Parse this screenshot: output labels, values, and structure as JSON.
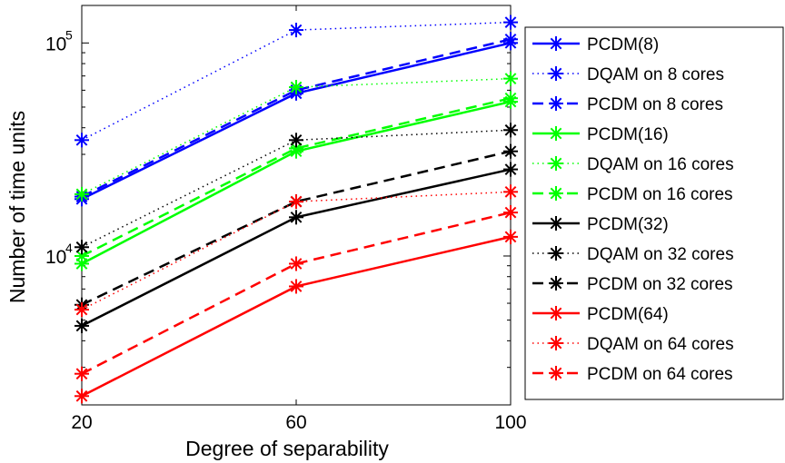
{
  "chart_data": {
    "type": "line",
    "xlabel": "Degree of separability",
    "ylabel": "Number of time units",
    "x": [
      20,
      60,
      100
    ],
    "xlim": [
      20,
      100
    ],
    "ylim": [
      2000,
      150000
    ],
    "yscale": "log",
    "grid": false,
    "legend_position": "outside-right",
    "x_ticks": [
      "20",
      "60",
      "100"
    ],
    "y_ticks": [
      {
        "base": "10",
        "exp": "4",
        "value": 10000
      },
      {
        "base": "10",
        "exp": "5",
        "value": 100000
      }
    ],
    "series": [
      {
        "name": "PCDM(8)",
        "color": "#0000ff",
        "style": "solid",
        "values": [
          18500,
          58000,
          100000
        ]
      },
      {
        "name": "DQAM on 8 cores",
        "color": "#0000ff",
        "style": "dotted",
        "values": [
          35000,
          115000,
          125000
        ]
      },
      {
        "name": "PCDM on 8 cores",
        "color": "#0000ff",
        "style": "dashed",
        "values": [
          19000,
          60000,
          104000
        ]
      },
      {
        "name": "PCDM(16)",
        "color": "#00ff00",
        "style": "solid",
        "values": [
          9200,
          31000,
          53000
        ]
      },
      {
        "name": "DQAM on 16 cores",
        "color": "#00ff00",
        "style": "dotted",
        "values": [
          19500,
          62000,
          68000
        ]
      },
      {
        "name": "PCDM on 16 cores",
        "color": "#00ff00",
        "style": "dashed",
        "values": [
          10000,
          32000,
          55000
        ]
      },
      {
        "name": "PCDM(32)",
        "color": "#000000",
        "style": "solid",
        "values": [
          4700,
          15200,
          25500
        ]
      },
      {
        "name": "DQAM on 32 cores",
        "color": "#000000",
        "style": "dotted",
        "values": [
          11000,
          35000,
          39000
        ]
      },
      {
        "name": "PCDM on 32 cores",
        "color": "#000000",
        "style": "dashed",
        "values": [
          5900,
          18000,
          31000
        ]
      },
      {
        "name": "PCDM(64)",
        "color": "#ff0000",
        "style": "solid",
        "values": [
          2200,
          7200,
          12300
        ]
      },
      {
        "name": "DQAM on 64 cores",
        "color": "#ff0000",
        "style": "dotted",
        "values": [
          5600,
          18000,
          20000
        ]
      },
      {
        "name": "PCDM on 64 cores",
        "color": "#ff0000",
        "style": "dashed",
        "values": [
          2800,
          9200,
          16000
        ]
      }
    ]
  }
}
